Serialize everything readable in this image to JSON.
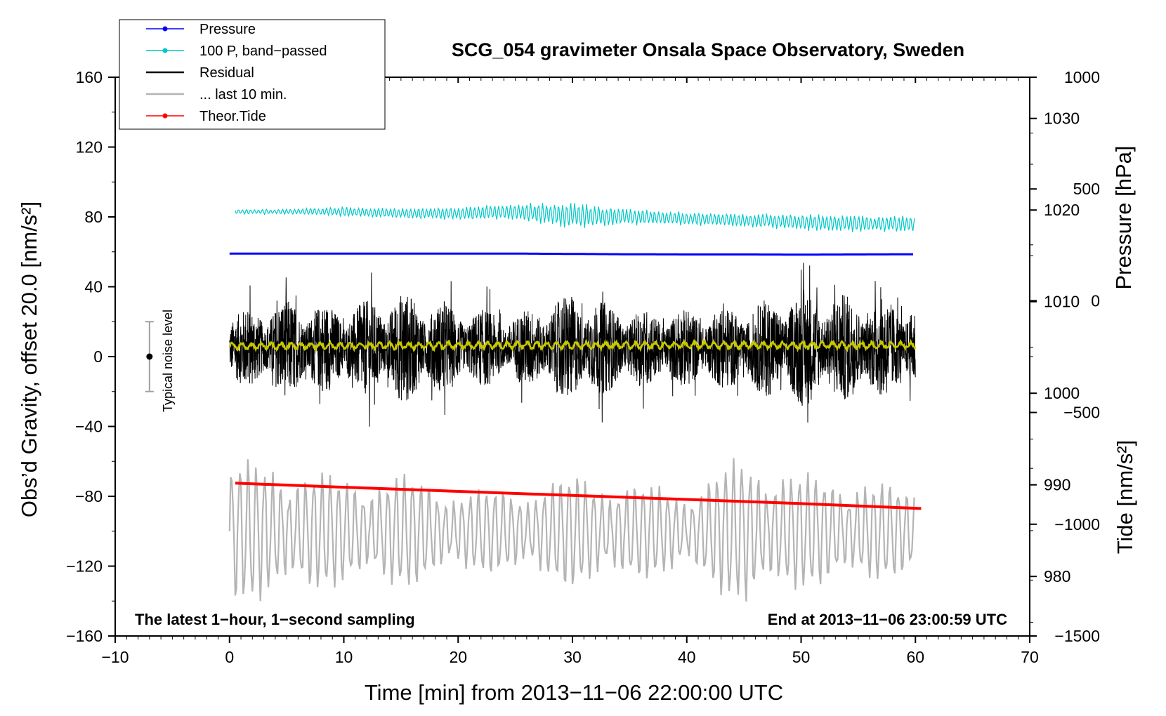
{
  "chart_data": {
    "type": "line",
    "title": "SCG_054 gravimeter Onsala Space Observatory, Sweden",
    "xlabel": "Time [min] from 2013−11−06 22:00:00 UTC",
    "ylabel": "Obs’d Gravity, offset 20.0 [nm/s²]",
    "ylabel_right_pressure": "Pressure [hPa]",
    "ylabel_right_tide": "Tide [nm/s²]",
    "xlim": [
      -10,
      70
    ],
    "ylim": [
      -160,
      160
    ],
    "x_ticks": [
      {
        "value": -10,
        "label": "−10"
      },
      {
        "value": 0,
        "label": "0"
      },
      {
        "value": 10,
        "label": "10"
      },
      {
        "value": 20,
        "label": "20"
      },
      {
        "value": 30,
        "label": "30"
      },
      {
        "value": 40,
        "label": "40"
      },
      {
        "value": 50,
        "label": "50"
      },
      {
        "value": 60,
        "label": "60"
      },
      {
        "value": 70,
        "label": "70"
      }
    ],
    "y_ticks": [
      {
        "value": 160,
        "label": "160"
      },
      {
        "value": 120,
        "label": "120"
      },
      {
        "value": 80,
        "label": "80"
      },
      {
        "value": 40,
        "label": "40"
      },
      {
        "value": 0,
        "label": "0"
      },
      {
        "value": -40,
        "label": "−40"
      },
      {
        "value": -80,
        "label": "−80"
      },
      {
        "value": -120,
        "label": "−120"
      },
      {
        "value": -160,
        "label": "−160"
      }
    ],
    "pressure_axis": {
      "ylim": [
        973.5,
        1034.5
      ],
      "ticks": [
        {
          "value": 1030,
          "label": "1030"
        },
        {
          "value": 1020,
          "label": "1020"
        },
        {
          "value": 1010,
          "label": "1010"
        },
        {
          "value": 1000,
          "label": "1000"
        },
        {
          "value": 990,
          "label": "990"
        },
        {
          "value": 980,
          "label": "980"
        }
      ]
    },
    "tide_axis": {
      "ylim": [
        -1500,
        1000
      ],
      "ticks": [
        {
          "value": 1000,
          "label": "1000"
        },
        {
          "value": 500,
          "label": "500"
        },
        {
          "value": 0,
          "label": "0"
        },
        {
          "value": -500,
          "label": "−500"
        },
        {
          "value": -1000,
          "label": "−1000"
        },
        {
          "value": -1500,
          "label": "−1500"
        }
      ]
    },
    "legend": {
      "position": "top-left",
      "entries": [
        {
          "label": "Pressure",
          "color": "#0000ff",
          "marker": true
        },
        {
          "label": "100 P, band−passed",
          "color": "#00c8c8",
          "marker": true
        },
        {
          "label": "Residual",
          "color": "#000000",
          "marker": false
        },
        {
          "label": "... last 10 min.",
          "color": "#b4b4b4",
          "marker": false
        },
        {
          "label": "Theor.Tide",
          "color": "#ff0000",
          "marker": true
        }
      ]
    },
    "series": [
      {
        "name": "Pressure",
        "color": "#0000ff",
        "axis": "left",
        "x": [
          0,
          10,
          20,
          25,
          30,
          35,
          40,
          45,
          50,
          55,
          60
        ],
        "y": [
          59,
          59,
          59,
          59,
          58.8,
          58.6,
          58.5,
          58.5,
          58.4,
          58.5,
          58.6
        ]
      },
      {
        "name": "100 P, band−passed",
        "color": "#00c8c8",
        "axis": "left",
        "x": [
          0,
          5,
          10,
          15,
          20,
          25,
          30,
          35,
          40,
          45,
          50,
          55,
          60
        ],
        "y": [
          83,
          83,
          83,
          82,
          82,
          83,
          81,
          80,
          79,
          78,
          77,
          76,
          76
        ],
        "amplitude": [
          1.5,
          1.5,
          3,
          3,
          4,
          5,
          8,
          5,
          4,
          4,
          5,
          5,
          5
        ]
      },
      {
        "name": "Residual",
        "color": "#000000",
        "axis": "left",
        "x": [
          0,
          5,
          10,
          15,
          20,
          25,
          30,
          35,
          40,
          45,
          50,
          55,
          60
        ],
        "y": [
          5,
          5,
          5,
          5,
          5,
          5,
          5,
          5,
          5,
          5,
          5,
          5,
          5
        ],
        "amplitude": [
          20,
          28,
          24,
          32,
          24,
          20,
          32,
          22,
          22,
          24,
          34,
          30,
          26
        ]
      },
      {
        "name": "Residual smoothed",
        "color": "#c8c800",
        "axis": "left",
        "x": [
          0,
          30,
          60
        ],
        "y": [
          6,
          6.5,
          6.5
        ],
        "amplitude": [
          1.5,
          1.5,
          1.5
        ]
      },
      {
        "name": "... last 10 min.",
        "color": "#b4b4b4",
        "axis": "left",
        "x": [
          0,
          5,
          10,
          15,
          20,
          25,
          30,
          35,
          40,
          45,
          50,
          55,
          60
        ],
        "y": [
          -100,
          -100,
          -100,
          -100,
          -100,
          -100,
          -100,
          -100,
          -100,
          -100,
          -100,
          -100,
          -100
        ],
        "amplitude": [
          38,
          35,
          28,
          30,
          22,
          22,
          30,
          26,
          22,
          40,
          30,
          28,
          22
        ]
      },
      {
        "name": "Theor.Tide",
        "color": "#ff0000",
        "axis": "left",
        "x": [
          0.5,
          10,
          20,
          30,
          40,
          50,
          60.5
        ],
        "y": [
          -72.5,
          -74.8,
          -77.2,
          -79.5,
          -81.8,
          -84.2,
          -87
        ]
      }
    ],
    "annotations": {
      "noise_label": "Typical noise level",
      "noise_bar": {
        "x": -7,
        "center": 0,
        "low": -20,
        "high": 20
      },
      "bottom_left": "The latest 1−hour, 1−second sampling",
      "bottom_right": "End at 2013−11−06 23:00:59 UTC"
    }
  }
}
